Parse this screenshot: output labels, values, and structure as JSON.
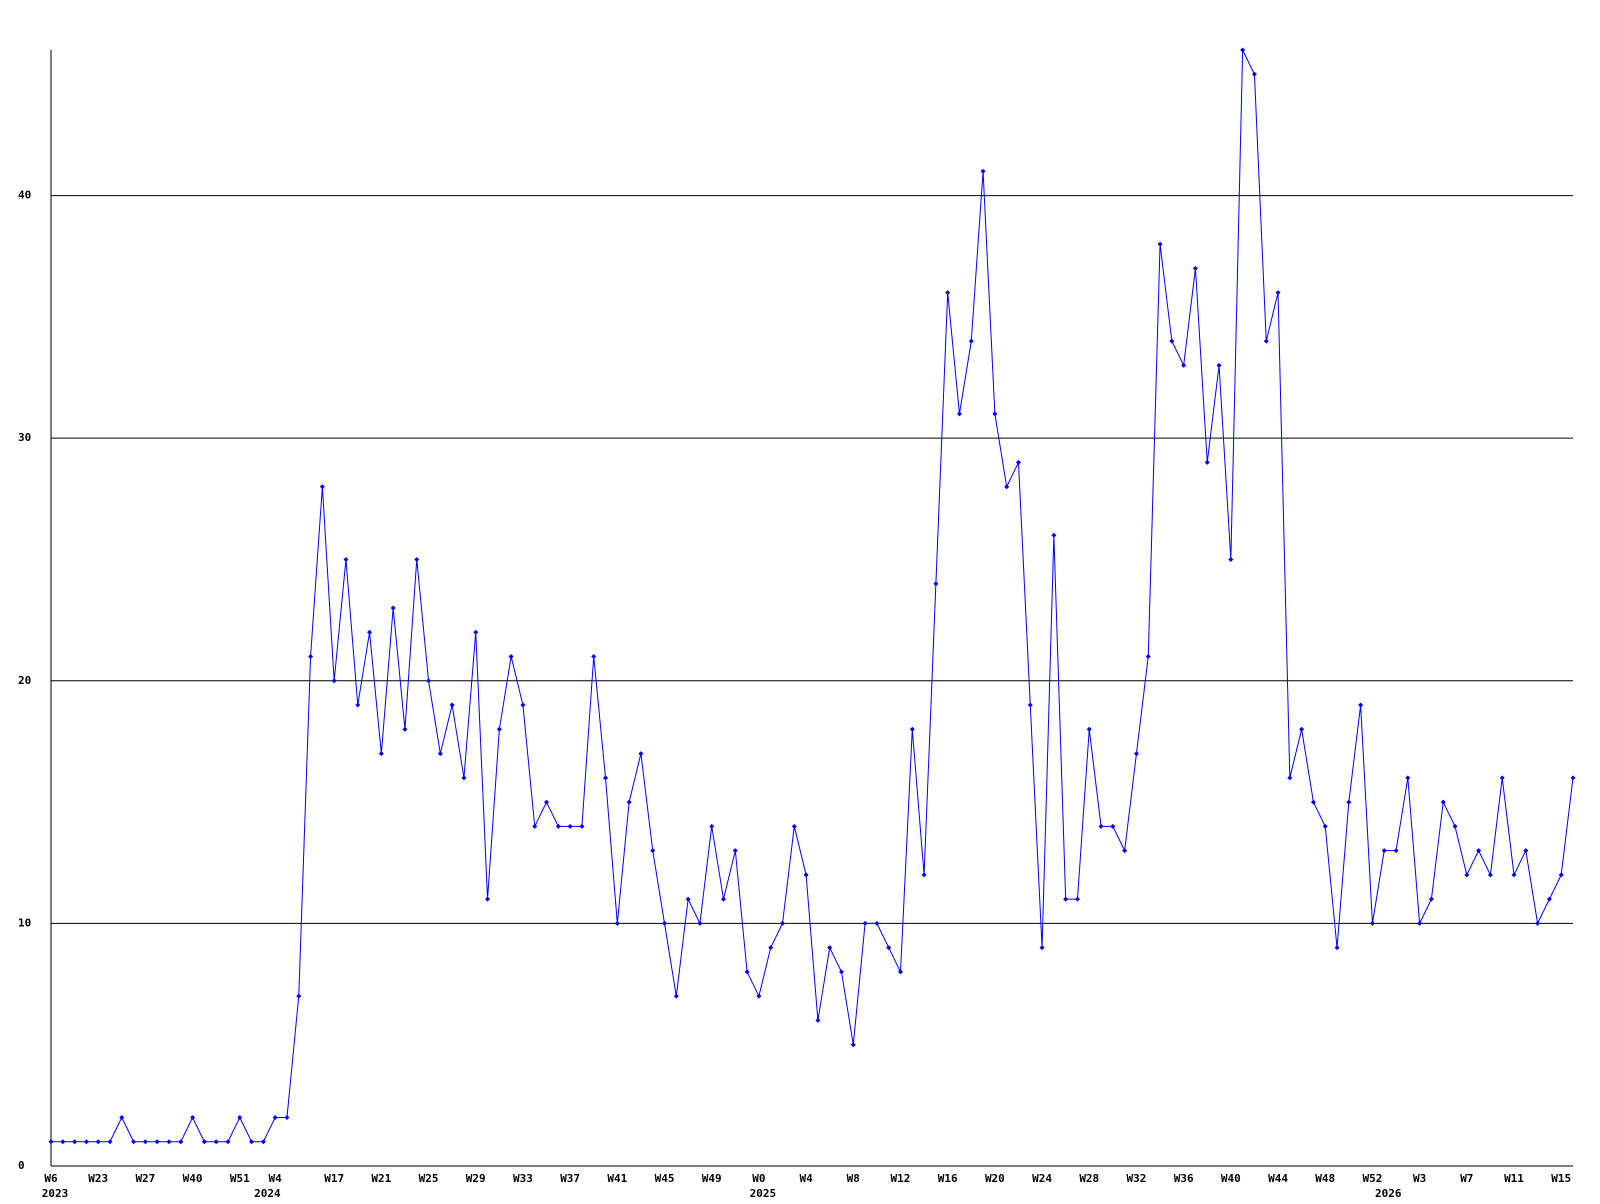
{
  "chart_data": {
    "type": "line",
    "categories": [
      "W6",
      null,
      null,
      null,
      "W23",
      null,
      null,
      null,
      "W27",
      null,
      null,
      null,
      "W40",
      null,
      null,
      null,
      "W51",
      null,
      null,
      "W4",
      null,
      null,
      null,
      null,
      "W17",
      null,
      null,
      null,
      "W21",
      null,
      null,
      null,
      "W25",
      null,
      null,
      null,
      "W29",
      null,
      null,
      null,
      "W33",
      null,
      null,
      null,
      "W37",
      null,
      null,
      null,
      "W41",
      null,
      null,
      null,
      "W45",
      null,
      null,
      null,
      "W49",
      null,
      null,
      null,
      "W0",
      null,
      null,
      null,
      "W4",
      null,
      null,
      null,
      "W8",
      null,
      null,
      null,
      "W12",
      null,
      null,
      null,
      "W16",
      null,
      null,
      null,
      "W20",
      null,
      null,
      null,
      "W24",
      null,
      null,
      null,
      "W28",
      null,
      null,
      null,
      "W32",
      null,
      null,
      null,
      "W36",
      null,
      null,
      null,
      "W40",
      null,
      null,
      null,
      "W44",
      null,
      null,
      null,
      "W48",
      null,
      null,
      null,
      "W52",
      null,
      null,
      null,
      "W3",
      null,
      null,
      null,
      "W7",
      null,
      null,
      null,
      "W11",
      null,
      null,
      null,
      "W15",
      null
    ],
    "year_labels": [
      "2023",
      null,
      null,
      null,
      null,
      null,
      null,
      null,
      null,
      null,
      null,
      null,
      null,
      null,
      null,
      null,
      null,
      null,
      "2024",
      null,
      null,
      null,
      null,
      null,
      null,
      null,
      null,
      null,
      null,
      null,
      null,
      null,
      null,
      null,
      null,
      null,
      null,
      null,
      null,
      null,
      null,
      null,
      null,
      null,
      null,
      null,
      null,
      null,
      null,
      null,
      null,
      null,
      null,
      null,
      null,
      null,
      null,
      null,
      null,
      null,
      "2025",
      null,
      null,
      null,
      null,
      null,
      null,
      null,
      null,
      null,
      null,
      null,
      null,
      null,
      null,
      null,
      null,
      null,
      null,
      null,
      null,
      null,
      null,
      null,
      null,
      null,
      null,
      null,
      null,
      null,
      null,
      null,
      null,
      null,
      null,
      null,
      null,
      null,
      null,
      null,
      null,
      null,
      null,
      null,
      null,
      null,
      null,
      null,
      null,
      null,
      null,
      null,
      null,
      "2026",
      null,
      null,
      null,
      null,
      null,
      null,
      null,
      null,
      null,
      null,
      null,
      null,
      null,
      null,
      null,
      null
    ],
    "series": [
      {
        "color": "#0000ff",
        "values": [
          1,
          1,
          1,
          1,
          1,
          1,
          2,
          1,
          1,
          1,
          1,
          1,
          2,
          1,
          1,
          1,
          2,
          1,
          1,
          2,
          2,
          7,
          21,
          28,
          20,
          25,
          19,
          22,
          17,
          23,
          18,
          25,
          20,
          17,
          19,
          16,
          22,
          11,
          18,
          21,
          19,
          14,
          15,
          14,
          14,
          14,
          21,
          16,
          10,
          15,
          17,
          13,
          10,
          7,
          11,
          10,
          14,
          11,
          13,
          8,
          7,
          9,
          10,
          14,
          12,
          6,
          9,
          8,
          5,
          10,
          10,
          9,
          8,
          18,
          12,
          24,
          36,
          31,
          34,
          41,
          31,
          28,
          29,
          19,
          9,
          26,
          11,
          11,
          18,
          14,
          14,
          13,
          17,
          21,
          38,
          34,
          33,
          37,
          29,
          33,
          25,
          46,
          45,
          34,
          36,
          16,
          18,
          15,
          14,
          9,
          15,
          19,
          10,
          13,
          13,
          16,
          10,
          11,
          15,
          14,
          12,
          13,
          12,
          16,
          12,
          13,
          10,
          11,
          12,
          16
        ]
      }
    ],
    "ylim": [
      0,
      46
    ],
    "yticks": [
      0,
      10,
      20,
      30,
      40
    ],
    "grid": true
  }
}
